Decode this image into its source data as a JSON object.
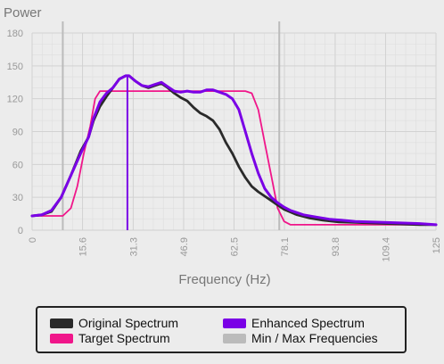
{
  "chart_data": {
    "type": "line",
    "ylabel": "Power",
    "xlabel": "Frequency (Hz)",
    "xlim": [
      0,
      125
    ],
    "ylim": [
      0,
      180
    ],
    "x_ticks": [
      "0",
      "15.6",
      "31.3",
      "46.9",
      "62.5",
      "78.1",
      "93.8",
      "109.4",
      "125"
    ],
    "y_ticks": [
      "0",
      "30",
      "60",
      "90",
      "120",
      "150",
      "180"
    ],
    "grid": true,
    "legend_position": "bottom",
    "series": [
      {
        "name": "Target Spectrum",
        "color": "#f0168a",
        "points": [
          [
            0,
            13
          ],
          [
            5,
            13
          ],
          [
            9.5,
            13
          ],
          [
            12,
            20
          ],
          [
            14,
            40
          ],
          [
            16,
            70
          ],
          [
            18,
            95
          ],
          [
            19.5,
            120
          ],
          [
            21,
            127
          ],
          [
            25,
            127
          ],
          [
            30,
            127
          ],
          [
            40,
            127
          ],
          [
            50,
            127
          ],
          [
            60,
            127
          ],
          [
            66,
            127
          ],
          [
            68,
            125
          ],
          [
            70,
            110
          ],
          [
            72,
            80
          ],
          [
            74,
            50
          ],
          [
            76,
            20
          ],
          [
            78,
            8
          ],
          [
            80,
            5
          ],
          [
            90,
            5
          ],
          [
            100,
            5
          ],
          [
            110,
            5
          ],
          [
            125,
            5
          ]
        ]
      },
      {
        "name": "Original Spectrum",
        "color": "#2a2a2a",
        "points": [
          [
            0,
            13
          ],
          [
            3,
            14
          ],
          [
            6,
            17
          ],
          [
            9,
            30
          ],
          [
            12,
            50
          ],
          [
            15,
            72
          ],
          [
            17.5,
            85
          ],
          [
            19,
            100
          ],
          [
            21,
            113
          ],
          [
            23,
            122
          ],
          [
            25,
            130
          ],
          [
            27,
            138
          ],
          [
            29,
            141
          ],
          [
            30,
            141
          ],
          [
            32,
            136
          ],
          [
            34,
            132
          ],
          [
            36,
            130
          ],
          [
            38,
            132
          ],
          [
            40,
            134
          ],
          [
            42,
            130
          ],
          [
            44,
            125
          ],
          [
            46,
            121
          ],
          [
            48,
            118
          ],
          [
            50,
            112
          ],
          [
            52,
            107
          ],
          [
            54,
            104
          ],
          [
            56,
            100
          ],
          [
            58,
            92
          ],
          [
            60,
            80
          ],
          [
            62,
            70
          ],
          [
            64,
            58
          ],
          [
            66,
            48
          ],
          [
            68,
            40
          ],
          [
            70,
            35
          ],
          [
            72,
            31
          ],
          [
            74,
            27
          ],
          [
            76,
            23
          ],
          [
            78,
            19
          ],
          [
            82,
            14
          ],
          [
            86,
            11
          ],
          [
            90,
            9
          ],
          [
            95,
            7.5
          ],
          [
            100,
            7
          ],
          [
            110,
            6
          ],
          [
            120,
            5
          ],
          [
            125,
            5
          ]
        ]
      },
      {
        "name": "Enhanced Spectrum",
        "color": "#7a00e6",
        "points": [
          [
            0,
            13
          ],
          [
            3,
            14
          ],
          [
            6,
            18
          ],
          [
            9,
            30
          ],
          [
            12,
            50
          ],
          [
            15,
            70
          ],
          [
            17.5,
            85
          ],
          [
            19,
            102
          ],
          [
            21,
            117
          ],
          [
            23,
            125
          ],
          [
            25,
            130
          ],
          [
            27,
            138
          ],
          [
            29,
            141
          ],
          [
            30,
            141
          ],
          [
            32,
            136
          ],
          [
            34,
            132
          ],
          [
            36,
            131
          ],
          [
            38,
            133
          ],
          [
            40,
            135
          ],
          [
            42,
            131
          ],
          [
            44,
            127
          ],
          [
            46,
            126
          ],
          [
            48,
            127
          ],
          [
            50,
            126
          ],
          [
            52,
            126
          ],
          [
            54,
            128
          ],
          [
            56,
            128
          ],
          [
            58,
            126
          ],
          [
            60,
            124
          ],
          [
            62,
            120
          ],
          [
            64,
            110
          ],
          [
            66,
            90
          ],
          [
            68,
            70
          ],
          [
            70,
            52
          ],
          [
            72,
            38
          ],
          [
            74,
            30
          ],
          [
            76,
            25
          ],
          [
            78,
            21
          ],
          [
            80,
            18
          ],
          [
            84,
            14
          ],
          [
            88,
            12
          ],
          [
            92,
            10
          ],
          [
            96,
            9
          ],
          [
            100,
            8
          ],
          [
            110,
            7
          ],
          [
            120,
            6
          ],
          [
            125,
            5
          ]
        ]
      },
      {
        "name": "Min / Max Frequencies",
        "color": "#bbbbbb",
        "markers_x": [
          9.5,
          76.5
        ]
      }
    ],
    "peak_marker": {
      "x": 29.5,
      "y": 141,
      "color": "#7a00e6"
    }
  },
  "legend": [
    {
      "label": "Original Spectrum",
      "color": "#2a2a2a"
    },
    {
      "label": "Enhanced Spectrum",
      "color": "#7a00e6"
    },
    {
      "label": "Target Spectrum",
      "color": "#f0168a"
    },
    {
      "label": "Min / Max Frequencies",
      "color": "#bbbbbb"
    }
  ]
}
